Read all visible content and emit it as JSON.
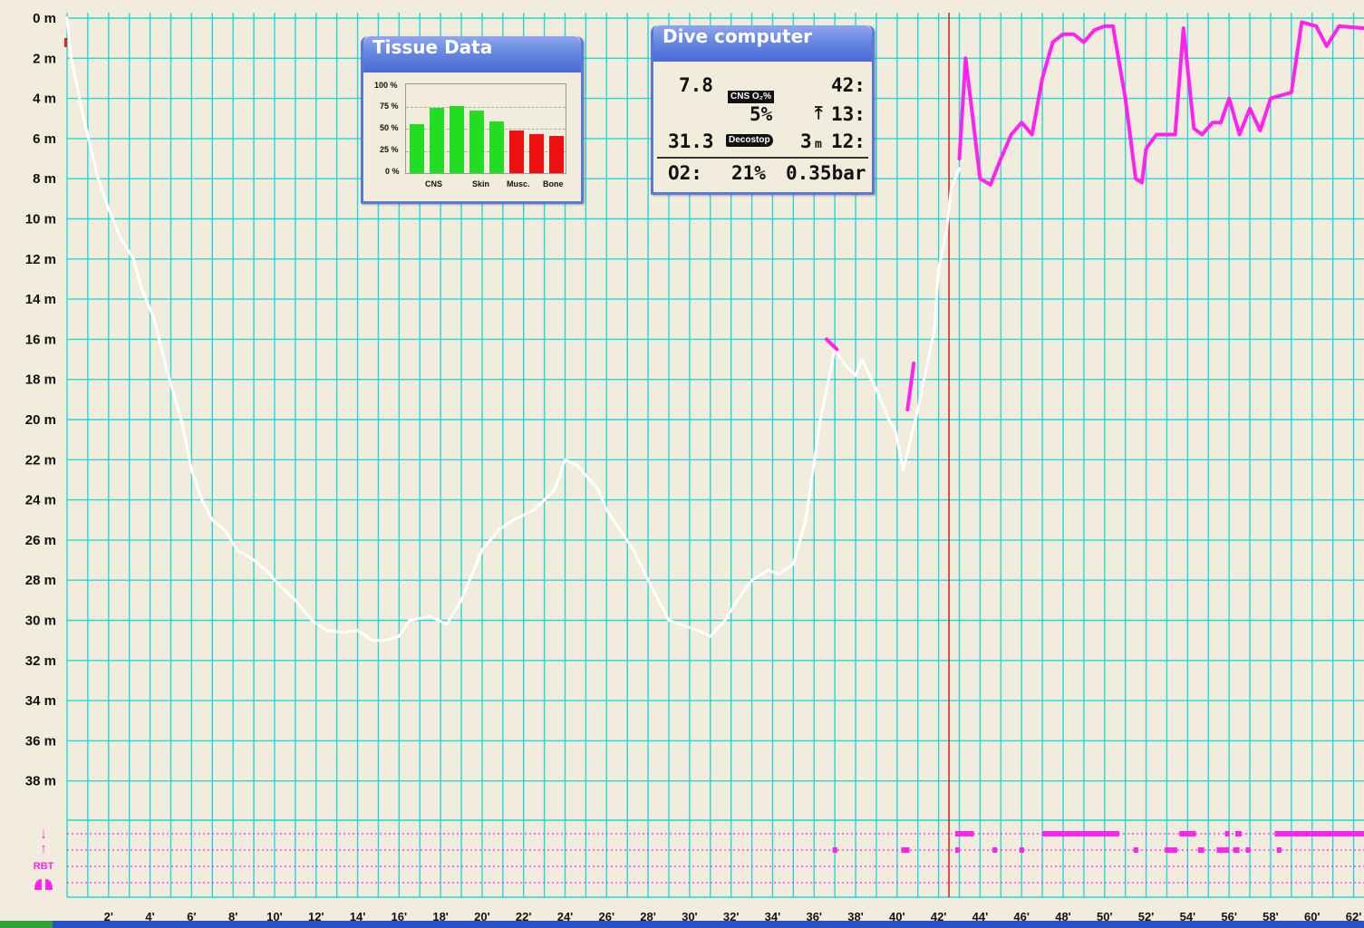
{
  "chart_data": {
    "type": "line",
    "y_axis": {
      "labels": [
        "0 m",
        "2 m",
        "4 m",
        "6 m",
        "8 m",
        "10 m",
        "12 m",
        "14 m",
        "16 m",
        "18 m",
        "20 m",
        "22 m",
        "24 m",
        "26 m",
        "28 m",
        "30 m",
        "32 m",
        "34 m",
        "36 m",
        "38 m"
      ],
      "ylim": [
        0,
        39
      ],
      "inverted": true
    },
    "x_axis": {
      "labels": [
        "2'",
        "4'",
        "6'",
        "8'",
        "10'",
        "12'",
        "14'",
        "16'",
        "18'",
        "20'",
        "22'",
        "24'",
        "26'",
        "28'",
        "30'",
        "32'",
        "34'",
        "36'",
        "38'",
        "40'",
        "42'",
        "44'",
        "46'",
        "48'",
        "50'",
        "52'",
        "54'",
        "56'",
        "58'",
        "60'",
        "62'"
      ],
      "xlim": [
        0,
        62.5
      ]
    },
    "grid": true,
    "cursor_minute": 42.5,
    "series": [
      {
        "color": "#ffffff",
        "points": [
          [
            0,
            0
          ],
          [
            0.2,
            2
          ],
          [
            0.8,
            5
          ],
          [
            1.5,
            8
          ],
          [
            2,
            9.5
          ],
          [
            2.6,
            11
          ],
          [
            3.2,
            12
          ],
          [
            3.6,
            13.5
          ],
          [
            4.2,
            15
          ],
          [
            4.8,
            17.5
          ],
          [
            5.5,
            20
          ],
          [
            6,
            22.5
          ],
          [
            6.5,
            24
          ],
          [
            7,
            25
          ],
          [
            7.6,
            25.5
          ],
          [
            8.2,
            26.5
          ],
          [
            9,
            27
          ],
          [
            9.6,
            27.5
          ],
          [
            10,
            28
          ],
          [
            11,
            29
          ],
          [
            11.8,
            30
          ],
          [
            12.5,
            30.5
          ],
          [
            13.3,
            30.6
          ],
          [
            14,
            30.5
          ],
          [
            14.7,
            31
          ],
          [
            15.3,
            31
          ],
          [
            16,
            30.8
          ],
          [
            16.5,
            30
          ],
          [
            17.5,
            29.8
          ],
          [
            18.3,
            30.2
          ],
          [
            19,
            29
          ],
          [
            20,
            26.5
          ],
          [
            20.8,
            25.5
          ],
          [
            21.5,
            25
          ],
          [
            22.5,
            24.5
          ],
          [
            23.5,
            23.5
          ],
          [
            24,
            22
          ],
          [
            24.6,
            22.3
          ],
          [
            25.6,
            23.5
          ],
          [
            26,
            24.5
          ],
          [
            27.3,
            26.5
          ],
          [
            28,
            28
          ],
          [
            29,
            30
          ],
          [
            30.4,
            30.5
          ],
          [
            31,
            30.8
          ],
          [
            31.7,
            30
          ],
          [
            32.3,
            29
          ],
          [
            33,
            28
          ],
          [
            33.8,
            27.5
          ],
          [
            34.3,
            27.7
          ],
          [
            35,
            27.2
          ],
          [
            35.6,
            25
          ],
          [
            36.3,
            20
          ],
          [
            37,
            16.5
          ],
          [
            37.5,
            17.3
          ],
          [
            38,
            17.8
          ],
          [
            38.3,
            17
          ],
          [
            39,
            18.5
          ],
          [
            39.6,
            20
          ],
          [
            39.9,
            20.5
          ],
          [
            40.3,
            22.5
          ],
          [
            41,
            19.5
          ],
          [
            41.4,
            17.5
          ],
          [
            41.8,
            15.5
          ],
          [
            42,
            12.5
          ],
          [
            42.4,
            10.5
          ],
          [
            42.6,
            8.5
          ],
          [
            43,
            7.5
          ]
        ]
      },
      {
        "color": "#ff22ee",
        "points": [
          [
            43,
            7
          ],
          [
            43.3,
            2
          ],
          [
            44,
            8
          ],
          [
            44.5,
            8.3
          ],
          [
            45,
            7
          ],
          [
            45.5,
            5.8
          ],
          [
            46,
            5.2
          ],
          [
            46.5,
            5.8
          ],
          [
            47,
            3
          ],
          [
            47.5,
            1.2
          ],
          [
            48,
            0.8
          ],
          [
            48.5,
            0.8
          ],
          [
            49,
            1.2
          ],
          [
            49.5,
            0.6
          ],
          [
            50,
            0.4
          ],
          [
            50.4,
            0.4
          ],
          [
            51,
            4
          ],
          [
            51.5,
            8
          ],
          [
            51.8,
            8.2
          ],
          [
            52,
            6.5
          ],
          [
            52.5,
            5.8
          ],
          [
            53.4,
            5.8
          ],
          [
            53.8,
            0.5
          ],
          [
            54.3,
            5.5
          ],
          [
            54.7,
            5.8
          ],
          [
            55.2,
            5.2
          ],
          [
            55.6,
            5.2
          ],
          [
            56,
            4
          ],
          [
            56.5,
            5.8
          ],
          [
            57,
            4.5
          ],
          [
            57.5,
            5.6
          ],
          [
            58,
            4
          ],
          [
            59,
            3.7
          ],
          [
            59.5,
            0.2
          ],
          [
            60.2,
            0.4
          ],
          [
            60.7,
            1.4
          ],
          [
            61.3,
            0.4
          ],
          [
            62.5,
            0.5
          ]
        ]
      },
      {
        "color": "#ff22ee",
        "points": [
          [
            36.6,
            16
          ],
          [
            37.1,
            16.5
          ]
        ]
      },
      {
        "color": "#ff22ee",
        "points": [
          [
            40.5,
            19.5
          ],
          [
            40.8,
            17.2
          ]
        ]
      }
    ],
    "event_rows": [
      {
        "symbol": "↓",
        "segments": [
          [
            42.8,
            43.7
          ],
          [
            47,
            50.7
          ],
          [
            53.6,
            54.4
          ],
          [
            55.8,
            56
          ],
          [
            56.3,
            56.6
          ],
          [
            58.2,
            62.5
          ]
        ]
      },
      {
        "symbol": "↑",
        "segments": [
          [
            36.9,
            37.1
          ],
          [
            40.2,
            40.6
          ],
          [
            42.8,
            43
          ],
          [
            44.6,
            44.8
          ],
          [
            45.9,
            46.1
          ],
          [
            51.4,
            51.6
          ],
          [
            52.9,
            53.5
          ],
          [
            54.5,
            54.8
          ],
          [
            55.4,
            56
          ],
          [
            56.2,
            56.5
          ],
          [
            56.8,
            57
          ],
          [
            58.3,
            58.5
          ]
        ]
      }
    ],
    "rbt_label": "RBT"
  },
  "tissue": {
    "title": "Tissue Data",
    "y_labels": [
      "100 %",
      "75 %",
      "50 %",
      "25 %",
      "0 %"
    ],
    "x_labels": [
      "CNS",
      "Skin",
      "Musc.",
      "Bone"
    ],
    "bars": [
      {
        "value": 55,
        "color": "#22dd22"
      },
      {
        "value": 73,
        "color": "#22dd22"
      },
      {
        "value": 76,
        "color": "#22dd22"
      },
      {
        "value": 70,
        "color": "#22dd22"
      },
      {
        "value": 58,
        "color": "#22dd22"
      },
      {
        "value": 48,
        "color": "#ee1111"
      },
      {
        "value": 44,
        "color": "#ee1111"
      },
      {
        "value": 42,
        "color": "#ee1111"
      }
    ]
  },
  "dive_computer": {
    "title": "Dive computer",
    "value_top_left": "7.8",
    "value_top_right": "42:",
    "cns_badge": "CNS O₂%",
    "cns_value": "5%",
    "ascent_time": "13:",
    "value_mid_left": "31.3",
    "deco_badge": "Decostop",
    "deco_depth": "3",
    "deco_unit": "m",
    "deco_time": "12:",
    "o2_label": "O2:",
    "o2_percent": "21%",
    "o2_pressure": "0.35bar"
  },
  "colors": {
    "background": "#f2ecdc",
    "grid": "#22d8d8",
    "profile": "#ffffff",
    "highlight": "#ff22ee",
    "cursor": "#cc1111"
  }
}
